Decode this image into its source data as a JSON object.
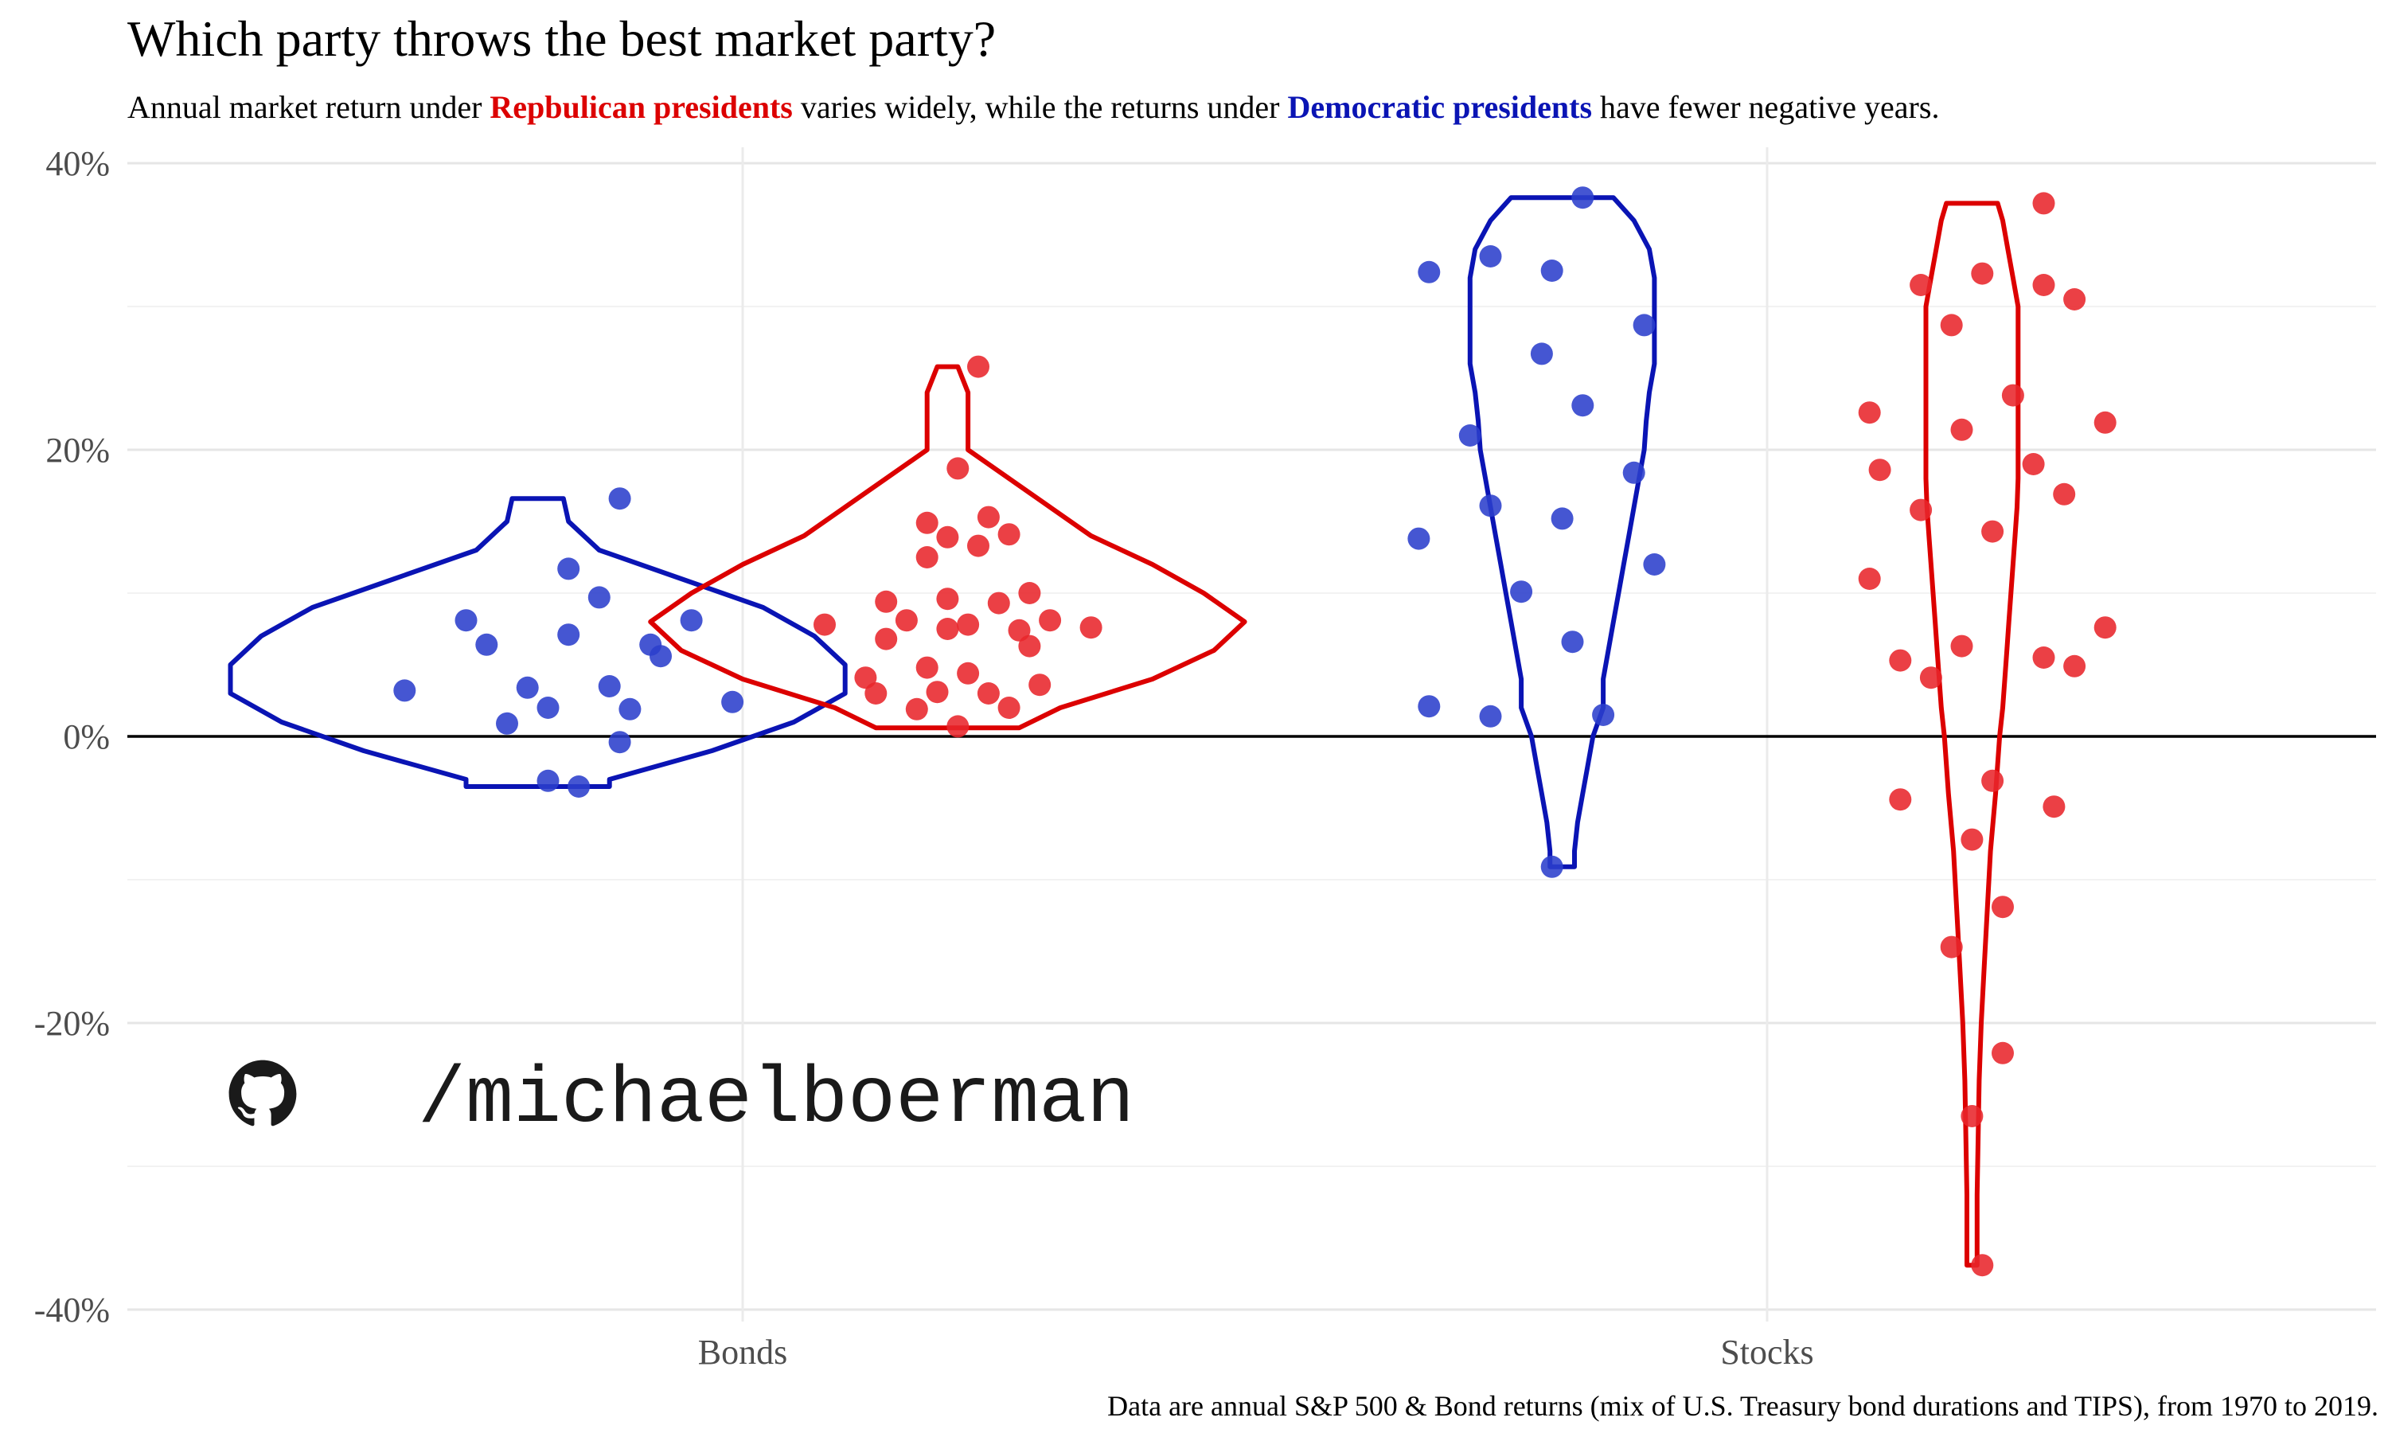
{
  "header": {
    "title": "Which party throws the best market party?",
    "subtitle": {
      "pre": "Annual market return under ",
      "rep": "Repbulican presidents",
      "mid": " varies widely, while the returns under ",
      "dem": "Democratic presidents",
      "post": " have fewer negative years."
    }
  },
  "caption": "Data are annual S&P 500 & Bond returns (mix of U.S. Treasury bond durations and TIPS), from 1970 to 2019.",
  "watermark": {
    "text": "/michaelboerman",
    "icon": "github-icon"
  },
  "colors": {
    "dem": "#0a14b4",
    "rep": "#dc0000",
    "dem_point": "#2b3fcc",
    "rep_point": "#e8262b"
  },
  "chart_data": {
    "type": "scatter",
    "subtype": "violin-with-jittered-points",
    "categories": [
      "Bonds",
      "Stocks"
    ],
    "ylim": [
      -40,
      40
    ],
    "y_ticks": [
      40,
      20,
      0,
      -20,
      -40
    ],
    "y_tick_labels": [
      "40%",
      "20%",
      "0%",
      "-20%",
      "-40%"
    ],
    "grid": true,
    "legend": "none",
    "series": [
      {
        "party": "dem",
        "category": "Bonds",
        "points": [
          [
            -0.33,
            3.2
          ],
          [
            -0.27,
            8.1
          ],
          [
            -0.25,
            6.4
          ],
          [
            -0.23,
            0.9
          ],
          [
            -0.21,
            3.4
          ],
          [
            -0.19,
            2.0
          ],
          [
            -0.19,
            -3.1
          ],
          [
            -0.17,
            11.7
          ],
          [
            -0.17,
            7.1
          ],
          [
            -0.16,
            -3.5
          ],
          [
            -0.14,
            9.7
          ],
          [
            -0.13,
            3.5
          ],
          [
            -0.12,
            -0.4
          ],
          [
            -0.12,
            16.6
          ],
          [
            -0.11,
            1.9
          ],
          [
            -0.09,
            6.4
          ],
          [
            -0.08,
            5.6
          ],
          [
            -0.05,
            8.1
          ],
          [
            -0.01,
            2.4
          ]
        ],
        "violin": [
          [
            16.6,
            0.025
          ],
          [
            15.0,
            0.03
          ],
          [
            13.0,
            0.06
          ],
          [
            11.0,
            0.14
          ],
          [
            9.0,
            0.22
          ],
          [
            7.0,
            0.27
          ],
          [
            5.0,
            0.3
          ],
          [
            3.0,
            0.3
          ],
          [
            1.0,
            0.25
          ],
          [
            -1.0,
            0.17
          ],
          [
            -3.0,
            0.07
          ],
          [
            -3.5,
            0.07
          ]
        ]
      },
      {
        "party": "rep",
        "category": "Bonds",
        "points": [
          [
            0.08,
            7.8
          ],
          [
            0.12,
            4.1
          ],
          [
            0.13,
            3.0
          ],
          [
            0.14,
            9.4
          ],
          [
            0.14,
            6.8
          ],
          [
            0.16,
            8.1
          ],
          [
            0.17,
            1.9
          ],
          [
            0.18,
            4.8
          ],
          [
            0.18,
            12.5
          ],
          [
            0.18,
            14.9
          ],
          [
            0.19,
            3.1
          ],
          [
            0.2,
            13.9
          ],
          [
            0.2,
            9.6
          ],
          [
            0.2,
            7.5
          ],
          [
            0.21,
            18.7
          ],
          [
            0.21,
            0.7
          ],
          [
            0.22,
            7.8
          ],
          [
            0.22,
            4.4
          ],
          [
            0.23,
            13.3
          ],
          [
            0.24,
            15.3
          ],
          [
            0.24,
            3.0
          ],
          [
            0.25,
            9.3
          ],
          [
            0.26,
            2.0
          ],
          [
            0.26,
            14.1
          ],
          [
            0.27,
            7.4
          ],
          [
            0.28,
            10.0
          ],
          [
            0.28,
            6.3
          ],
          [
            0.29,
            3.6
          ],
          [
            0.3,
            8.1
          ],
          [
            0.34,
            7.6
          ],
          [
            0.23,
            25.8
          ]
        ],
        "violin": [
          [
            25.8,
            0.01
          ],
          [
            24.0,
            0.02
          ],
          [
            22.0,
            0.02
          ],
          [
            20.0,
            0.02
          ],
          [
            18.0,
            0.06
          ],
          [
            16.0,
            0.1
          ],
          [
            14.0,
            0.14
          ],
          [
            12.0,
            0.2
          ],
          [
            10.0,
            0.25
          ],
          [
            8.0,
            0.29
          ],
          [
            6.0,
            0.26
          ],
          [
            4.0,
            0.2
          ],
          [
            2.0,
            0.11
          ],
          [
            0.6,
            0.07
          ]
        ]
      },
      {
        "party": "dem",
        "category": "Stocks",
        "points": [
          [
            -0.34,
            13.8
          ],
          [
            -0.33,
            2.1
          ],
          [
            -0.33,
            32.4
          ],
          [
            -0.29,
            21.0
          ],
          [
            -0.27,
            1.4
          ],
          [
            -0.27,
            33.5
          ],
          [
            -0.27,
            16.1
          ],
          [
            -0.24,
            10.1
          ],
          [
            -0.22,
            26.7
          ],
          [
            -0.21,
            -9.1
          ],
          [
            -0.21,
            32.5
          ],
          [
            -0.2,
            15.2
          ],
          [
            -0.19,
            6.6
          ],
          [
            -0.18,
            23.1
          ],
          [
            -0.18,
            37.6
          ],
          [
            -0.16,
            1.5
          ],
          [
            -0.13,
            18.4
          ],
          [
            -0.12,
            28.7
          ],
          [
            -0.11,
            12.0
          ]
        ],
        "violin": [
          [
            37.6,
            0.05
          ],
          [
            36.0,
            0.07
          ],
          [
            34.0,
            0.085
          ],
          [
            32.0,
            0.09
          ],
          [
            30.0,
            0.09
          ],
          [
            28.0,
            0.09
          ],
          [
            26.0,
            0.09
          ],
          [
            24.0,
            0.085
          ],
          [
            22.0,
            0.082
          ],
          [
            20.0,
            0.08
          ],
          [
            18.0,
            0.075
          ],
          [
            16.0,
            0.07
          ],
          [
            14.0,
            0.065
          ],
          [
            12.0,
            0.06
          ],
          [
            10.0,
            0.055
          ],
          [
            8.0,
            0.05
          ],
          [
            6.0,
            0.045
          ],
          [
            4.0,
            0.04
          ],
          [
            2.0,
            0.04
          ],
          [
            0.0,
            0.03
          ],
          [
            -2.0,
            0.025
          ],
          [
            -4.0,
            0.02
          ],
          [
            -6.0,
            0.015
          ],
          [
            -8.0,
            0.012
          ],
          [
            -9.1,
            0.012
          ]
        ]
      },
      {
        "party": "rep",
        "category": "Stocks",
        "points": [
          [
            0.1,
            22.6
          ],
          [
            0.1,
            11.0
          ],
          [
            0.11,
            18.6
          ],
          [
            0.13,
            5.3
          ],
          [
            0.13,
            -4.4
          ],
          [
            0.15,
            31.5
          ],
          [
            0.15,
            15.8
          ],
          [
            0.16,
            4.1
          ],
          [
            0.18,
            28.7
          ],
          [
            0.18,
            -14.7
          ],
          [
            0.19,
            21.4
          ],
          [
            0.19,
            6.3
          ],
          [
            0.2,
            -7.2
          ],
          [
            0.2,
            -26.5
          ],
          [
            0.21,
            32.3
          ],
          [
            0.21,
            -36.9
          ],
          [
            0.22,
            14.3
          ],
          [
            0.22,
            -3.1
          ],
          [
            0.23,
            -11.9
          ],
          [
            0.23,
            -22.1
          ],
          [
            0.24,
            23.8
          ],
          [
            0.26,
            19.0
          ],
          [
            0.27,
            5.5
          ],
          [
            0.27,
            31.5
          ],
          [
            0.27,
            37.2
          ],
          [
            0.28,
            -4.9
          ],
          [
            0.29,
            16.9
          ],
          [
            0.3,
            30.5
          ],
          [
            0.3,
            4.9
          ],
          [
            0.33,
            21.9
          ],
          [
            0.33,
            7.6
          ]
        ],
        "violin": [
          [
            37.2,
            0.025
          ],
          [
            36.0,
            0.03
          ],
          [
            34.0,
            0.035
          ],
          [
            32.0,
            0.04
          ],
          [
            30.0,
            0.045
          ],
          [
            28.0,
            0.045
          ],
          [
            26.0,
            0.045
          ],
          [
            24.0,
            0.045
          ],
          [
            22.0,
            0.045
          ],
          [
            20.0,
            0.045
          ],
          [
            18.0,
            0.045
          ],
          [
            16.0,
            0.044
          ],
          [
            14.0,
            0.042
          ],
          [
            12.0,
            0.04
          ],
          [
            10.0,
            0.038
          ],
          [
            8.0,
            0.036
          ],
          [
            6.0,
            0.034
          ],
          [
            4.0,
            0.032
          ],
          [
            2.0,
            0.03
          ],
          [
            0.0,
            0.027
          ],
          [
            -4.0,
            0.023
          ],
          [
            -8.0,
            0.018
          ],
          [
            -12.0,
            0.015
          ],
          [
            -16.0,
            0.012
          ],
          [
            -20.0,
            0.009
          ],
          [
            -24.0,
            0.007
          ],
          [
            -28.0,
            0.006
          ],
          [
            -32.0,
            0.005
          ],
          [
            -34.0,
            0.005
          ],
          [
            -36.9,
            0.005
          ]
        ]
      }
    ]
  }
}
